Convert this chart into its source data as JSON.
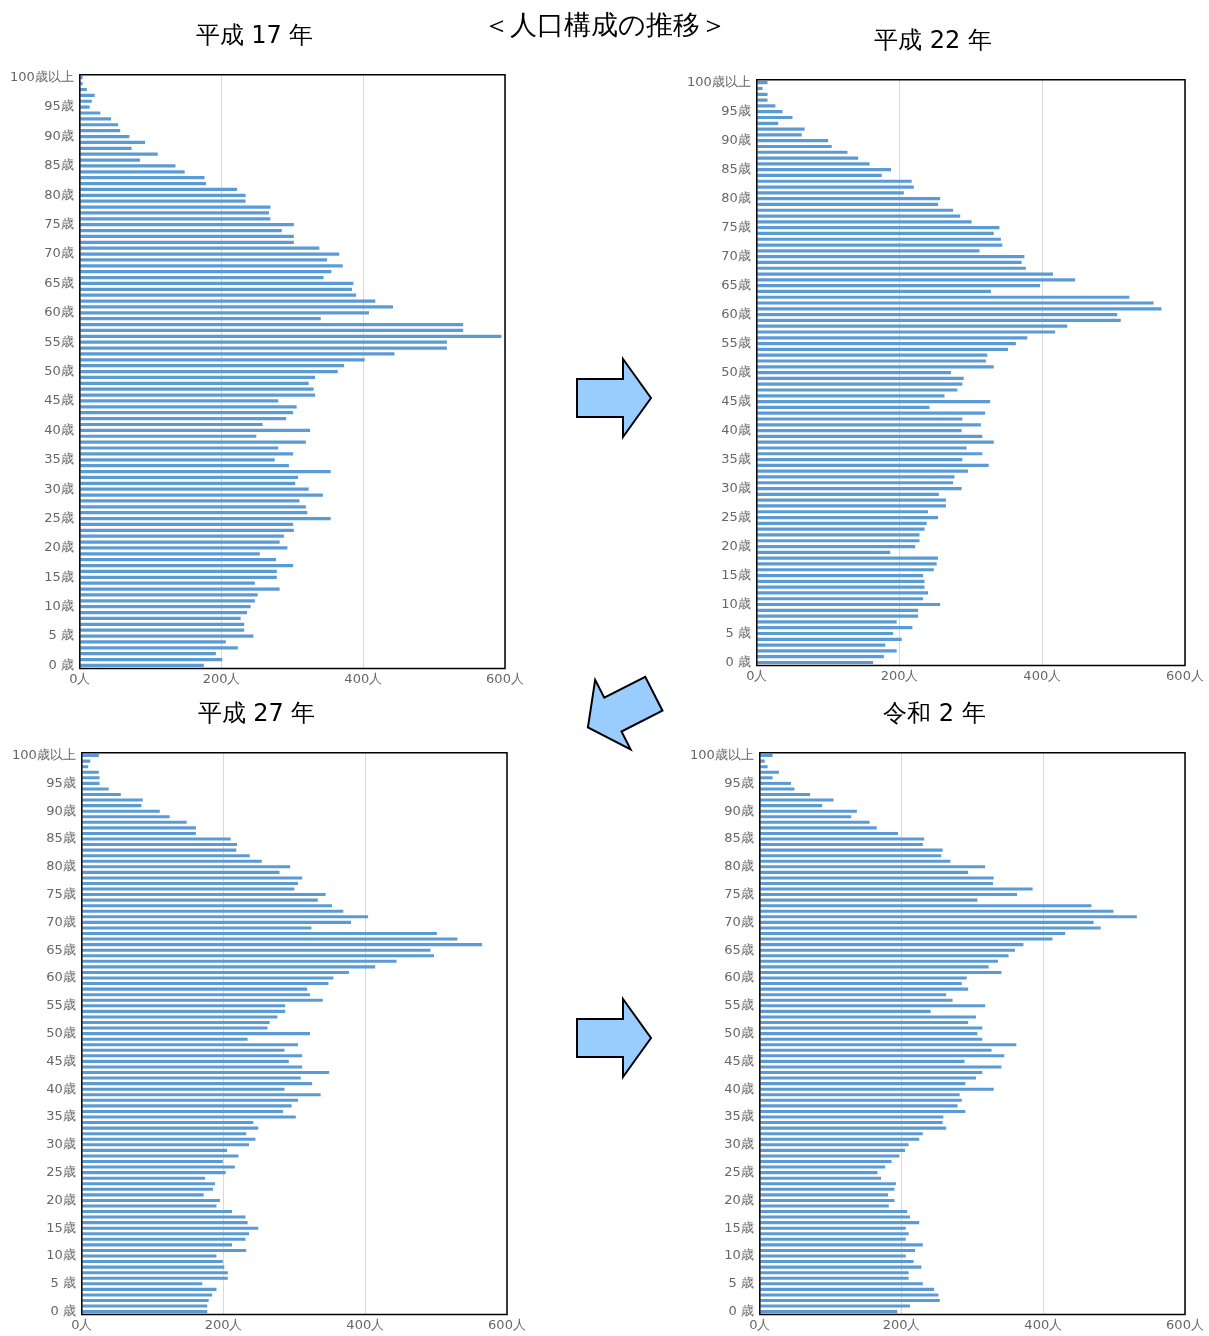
{
  "chart_data": [
    {
      "type": "other",
      "title": "＜人口構成の推移＞"
    },
    {
      "type": "bar",
      "orientation": "horizontal",
      "title": "平成 17 年",
      "categories": [
        "100歳以上",
        null,
        null,
        null,
        null,
        "95歳",
        null,
        null,
        null,
        null,
        "90歳",
        null,
        null,
        null,
        null,
        "85歳",
        null,
        null,
        null,
        null,
        "80歳",
        null,
        null,
        null,
        null,
        "75歳",
        null,
        null,
        null,
        null,
        "70歳",
        null,
        null,
        null,
        null,
        "65歳",
        null,
        null,
        null,
        null,
        "60歳",
        null,
        null,
        null,
        null,
        "55歳",
        null,
        null,
        null,
        null,
        "50歳",
        null,
        null,
        null,
        null,
        "45歳",
        null,
        null,
        null,
        null,
        "40歳",
        null,
        null,
        null,
        null,
        "35歳",
        null,
        null,
        null,
        null,
        "30歳",
        null,
        null,
        null,
        null,
        "25歳",
        null,
        null,
        null,
        null,
        "20歳",
        null,
        null,
        null,
        null,
        "15歳",
        null,
        null,
        null,
        null,
        "10歳",
        null,
        null,
        null,
        null,
        "5 歳",
        null,
        null,
        null,
        null,
        "0 歳"
      ],
      "color": "#5b9bd5",
      "xlim": [
        0,
        600
      ],
      "xticks": [
        {
          "value": 0,
          "label": "0人"
        },
        {
          "value": 200,
          "label": "200人"
        },
        {
          "value": 400,
          "label": "400人"
        },
        {
          "value": 600,
          "label": "600人"
        }
      ],
      "grid": "x",
      "values": [
        4,
        4,
        10,
        21,
        17,
        14,
        29,
        44,
        54,
        57,
        70,
        92,
        73,
        110,
        85,
        135,
        148,
        176,
        178,
        222,
        234,
        234,
        269,
        267,
        269,
        302,
        285,
        302,
        302,
        338,
        366,
        349,
        371,
        355,
        344,
        386,
        384,
        390,
        417,
        442,
        408,
        340,
        541,
        541,
        595,
        518,
        518,
        444,
        402,
        373,
        364,
        332,
        323,
        330,
        332,
        280,
        306,
        301,
        291,
        258,
        325,
        249,
        319,
        280,
        301,
        275,
        295,
        354,
        308,
        304,
        323,
        343,
        310,
        319,
        321,
        354,
        301,
        302,
        288,
        282,
        293,
        254,
        277,
        301,
        278,
        278,
        247,
        282,
        251,
        247,
        241,
        236,
        227,
        232,
        232,
        245,
        206,
        223,
        192,
        201,
        175
      ]
    },
    {
      "type": "bar",
      "orientation": "horizontal",
      "title": "平成 22 年",
      "categories": [
        "100歳以上",
        null,
        null,
        null,
        null,
        "95歳",
        null,
        null,
        null,
        null,
        "90歳",
        null,
        null,
        null,
        null,
        "85歳",
        null,
        null,
        null,
        null,
        "80歳",
        null,
        null,
        null,
        null,
        "75歳",
        null,
        null,
        null,
        null,
        "70歳",
        null,
        null,
        null,
        null,
        "65歳",
        null,
        null,
        null,
        null,
        "60歳",
        null,
        null,
        null,
        null,
        "55歳",
        null,
        null,
        null,
        null,
        "50歳",
        null,
        null,
        null,
        null,
        "45歳",
        null,
        null,
        null,
        null,
        "40歳",
        null,
        null,
        null,
        null,
        "35歳",
        null,
        null,
        null,
        null,
        "30歳",
        null,
        null,
        null,
        null,
        "25歳",
        null,
        null,
        null,
        null,
        "20歳",
        null,
        null,
        null,
        null,
        "15歳",
        null,
        null,
        null,
        null,
        "10歳",
        null,
        null,
        null,
        null,
        "5 歳",
        null,
        null,
        null,
        null,
        "0 歳"
      ],
      "color": "#5b9bd5",
      "xlim": [
        0,
        600
      ],
      "xticks": [
        {
          "value": 0,
          "label": "0人"
        },
        {
          "value": 200,
          "label": "200人"
        },
        {
          "value": 400,
          "label": "400人"
        },
        {
          "value": 600,
          "label": "600人"
        }
      ],
      "grid": "x",
      "values": [
        15,
        8,
        15,
        15,
        26,
        36,
        50,
        30,
        67,
        63,
        100,
        105,
        127,
        142,
        158,
        188,
        175,
        217,
        220,
        206,
        257,
        254,
        275,
        285,
        301,
        340,
        332,
        342,
        344,
        312,
        375,
        371,
        377,
        415,
        446,
        397,
        328,
        522,
        556,
        567,
        505,
        510,
        435,
        418,
        379,
        363,
        352,
        323,
        321,
        332,
        272,
        290,
        288,
        281,
        263,
        327,
        242,
        320,
        288,
        314,
        287,
        316,
        332,
        294,
        316,
        288,
        325,
        296,
        277,
        275,
        287,
        255,
        265,
        265,
        240,
        254,
        238,
        235,
        228,
        228,
        222,
        187,
        254,
        252,
        248,
        233,
        235,
        235,
        240,
        233,
        257,
        226,
        226,
        196,
        218,
        191,
        203,
        180,
        196,
        178,
        163
      ]
    },
    {
      "type": "bar",
      "orientation": "horizontal",
      "title": "平成 27 年",
      "categories": [
        "100歳以上",
        null,
        null,
        null,
        null,
        "95歳",
        null,
        null,
        null,
        null,
        "90歳",
        null,
        null,
        null,
        null,
        "85歳",
        null,
        null,
        null,
        null,
        "80歳",
        null,
        null,
        null,
        null,
        "75歳",
        null,
        null,
        null,
        null,
        "70歳",
        null,
        null,
        null,
        null,
        "65歳",
        null,
        null,
        null,
        null,
        "60歳",
        null,
        null,
        null,
        null,
        "55歳",
        null,
        null,
        null,
        null,
        "50歳",
        null,
        null,
        null,
        null,
        "45歳",
        null,
        null,
        null,
        null,
        "40歳",
        null,
        null,
        null,
        null,
        "35歳",
        null,
        null,
        null,
        null,
        "30歳",
        null,
        null,
        null,
        null,
        "25歳",
        null,
        null,
        null,
        null,
        "20歳",
        null,
        null,
        null,
        null,
        "15歳",
        null,
        null,
        null,
        null,
        "10歳",
        null,
        null,
        null,
        null,
        "5 歳",
        null,
        null,
        null,
        null,
        "0 歳"
      ],
      "color": "#5b9bd5",
      "xlim": [
        0,
        600
      ],
      "xticks": [
        {
          "value": 0,
          "label": "0人"
        },
        {
          "value": 200,
          "label": "200人"
        },
        {
          "value": 400,
          "label": "400人"
        },
        {
          "value": 600,
          "label": "600人"
        }
      ],
      "grid": "x",
      "values": [
        24,
        12,
        9,
        24,
        25,
        25,
        38,
        55,
        86,
        84,
        110,
        124,
        148,
        161,
        161,
        210,
        219,
        218,
        237,
        254,
        294,
        279,
        311,
        305,
        300,
        344,
        333,
        353,
        369,
        404,
        380,
        324,
        501,
        530,
        565,
        492,
        497,
        444,
        414,
        377,
        355,
        348,
        318,
        322,
        340,
        287,
        287,
        276,
        265,
        262,
        322,
        234,
        305,
        286,
        311,
        292,
        311,
        349,
        309,
        325,
        286,
        337,
        305,
        296,
        284,
        302,
        242,
        249,
        232,
        245,
        236,
        205,
        221,
        199,
        216,
        203,
        174,
        188,
        185,
        172,
        195,
        190,
        212,
        231,
        234,
        249,
        236,
        231,
        212,
        232,
        190,
        199,
        201,
        206,
        206,
        170,
        190,
        184,
        179,
        177,
        177
      ]
    },
    {
      "type": "bar",
      "orientation": "horizontal",
      "title": "令和 2 年",
      "categories": [
        "100歳以上",
        null,
        null,
        null,
        null,
        "95歳",
        null,
        null,
        null,
        null,
        "90歳",
        null,
        null,
        null,
        null,
        "85歳",
        null,
        null,
        null,
        null,
        "80歳",
        null,
        null,
        null,
        null,
        "75歳",
        null,
        null,
        null,
        null,
        "70歳",
        null,
        null,
        null,
        null,
        "65歳",
        null,
        null,
        null,
        null,
        "60歳",
        null,
        null,
        null,
        null,
        "55歳",
        null,
        null,
        null,
        null,
        "50歳",
        null,
        null,
        null,
        null,
        "45歳",
        null,
        null,
        null,
        null,
        "40歳",
        null,
        null,
        null,
        null,
        "35歳",
        null,
        null,
        null,
        null,
        "30歳",
        null,
        null,
        null,
        null,
        "25歳",
        null,
        null,
        null,
        null,
        "20歳",
        null,
        null,
        null,
        null,
        "15歳",
        null,
        null,
        null,
        null,
        "10歳",
        null,
        null,
        null,
        null,
        "5 歳",
        null,
        null,
        null,
        null,
        "0 歳"
      ],
      "color": "#5b9bd5",
      "xlim": [
        0,
        600
      ],
      "xticks": [
        {
          "value": 0,
          "label": "0人"
        },
        {
          "value": 200,
          "label": "200人"
        },
        {
          "value": 400,
          "label": "400人"
        },
        {
          "value": 600,
          "label": "600人"
        }
      ],
      "grid": "x",
      "values": [
        18,
        7,
        11,
        27,
        18,
        44,
        49,
        71,
        104,
        88,
        137,
        129,
        155,
        165,
        195,
        232,
        230,
        258,
        256,
        269,
        318,
        294,
        330,
        329,
        385,
        363,
        307,
        468,
        499,
        532,
        471,
        481,
        431,
        413,
        372,
        360,
        351,
        336,
        323,
        341,
        292,
        285,
        294,
        263,
        272,
        318,
        241,
        305,
        294,
        314,
        307,
        314,
        362,
        327,
        345,
        289,
        341,
        314,
        305,
        290,
        330,
        282,
        285,
        279,
        290,
        259,
        258,
        263,
        230,
        225,
        210,
        205,
        197,
        186,
        177,
        166,
        171,
        192,
        190,
        181,
        190,
        182,
        208,
        212,
        225,
        206,
        210,
        206,
        230,
        219,
        206,
        217,
        228,
        210,
        210,
        230,
        246,
        252,
        254,
        212,
        194
      ]
    }
  ]
}
